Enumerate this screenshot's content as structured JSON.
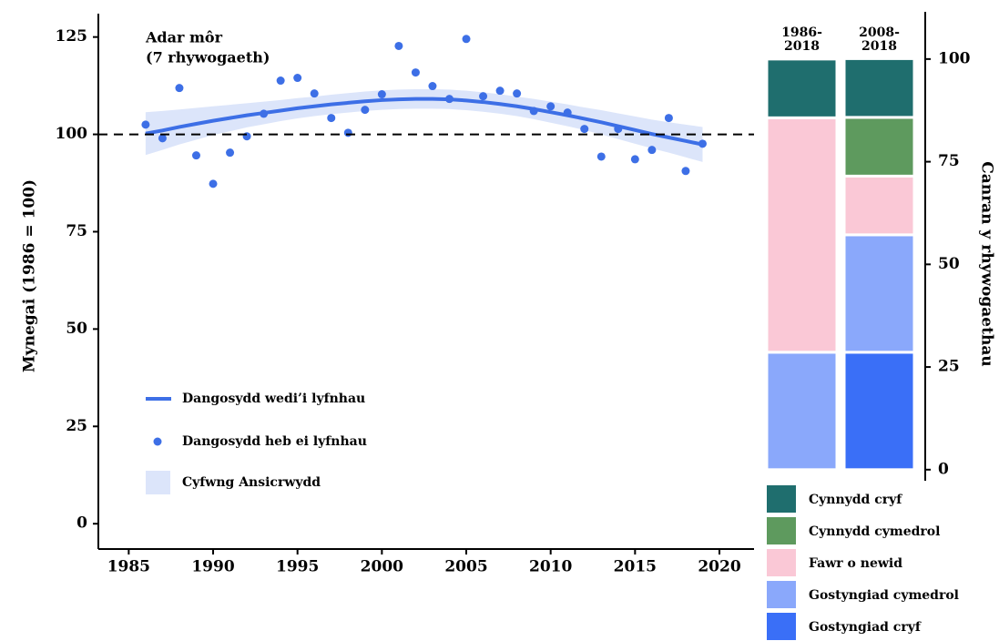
{
  "chart_data": [
    {
      "type": "line",
      "annotation": [
        "Adar môr",
        "(7 rhywogaeth)"
      ],
      "y_label": "Mynegai (1986 = 100)",
      "x": [
        1986,
        1987,
        1988,
        1989,
        1990,
        1991,
        1992,
        1993,
        1994,
        1995,
        1996,
        1997,
        1998,
        1999,
        2000,
        2001,
        2002,
        2003,
        2004,
        2005,
        2006,
        2007,
        2008,
        2009,
        2010,
        2011,
        2012,
        2013,
        2014,
        2015,
        2016,
        2017,
        2018,
        2019
      ],
      "series": [
        {
          "name": "Dangosydd wedi’i lyfnhau",
          "style": "line",
          "color": "#3d6fe6",
          "values": [
            100.2,
            101,
            101.9,
            102.7,
            103.5,
            104.2,
            104.9,
            105.5,
            106.1,
            106.7,
            107.2,
            107.7,
            108.1,
            108.5,
            108.8,
            109,
            109.1,
            109.1,
            109,
            108.7,
            108.3,
            107.8,
            107.2,
            106.5,
            105.7,
            104.9,
            104,
            103.1,
            102.1,
            101.1,
            100.1,
            99.2,
            98.3,
            97.4
          ]
        },
        {
          "name": "Dangosydd heb ei lyfnhau",
          "style": "points",
          "color": "#3d6fe6",
          "values": [
            102.5,
            99,
            111.9,
            94.6,
            87.3,
            95.3,
            99.5,
            105.3,
            113.8,
            114.5,
            110.5,
            104.2,
            100.4,
            106.3,
            110.3,
            122.7,
            115.9,
            112.4,
            109.1,
            124.5,
            109.8,
            111.2,
            110.5,
            106,
            107.2,
            105.6,
            101.4,
            94.3,
            101.4,
            93.6,
            96,
            104.2,
            90.6,
            97.6
          ]
        },
        {
          "name": "Cyfwng Ansicrwydd",
          "style": "band",
          "color": "#dce5fa",
          "lower": [
            94.7,
            96,
            97.4,
            98.6,
            99.8,
            100.8,
            101.8,
            102.6,
            103.4,
            104.1,
            104.7,
            105.2,
            105.6,
            106,
            106.3,
            106.5,
            106.6,
            106.6,
            106.5,
            106.2,
            105.8,
            105.3,
            104.7,
            103.9,
            103,
            102.1,
            101.1,
            100,
            98.8,
            97.6,
            96.4,
            95.3,
            94.1,
            92.9
          ],
          "upper": [
            105.7,
            106,
            106.4,
            106.8,
            107.2,
            107.6,
            108,
            108.4,
            108.8,
            109.3,
            109.7,
            110.2,
            110.6,
            111,
            111.3,
            111.5,
            111.6,
            111.6,
            111.5,
            111.2,
            110.8,
            110.3,
            109.7,
            109.1,
            108.4,
            107.7,
            106.9,
            106.2,
            105.4,
            104.6,
            103.8,
            103.1,
            102.5,
            101.9
          ]
        }
      ],
      "xlim": [
        1983.2,
        2022.05
      ],
      "ylim": [
        -6.5,
        131
      ],
      "xticks": [
        1985,
        1990,
        1995,
        2000,
        2005,
        2010,
        2015,
        2020
      ],
      "yticks": [
        0,
        25,
        50,
        75,
        100,
        125
      ],
      "hline": 100
    },
    {
      "type": "stacked_bar",
      "y_label": "Canran y rhywogaethau",
      "categories": [
        "1986-2018",
        "2008-2018"
      ],
      "series": [
        {
          "name": "Gostyngiad cryf",
          "color": "#3a6ff7",
          "values": [
            0,
            28.6
          ]
        },
        {
          "name": "Gostyngiad cymedrol",
          "color": "#8aa8fb",
          "values": [
            28.6,
            28.6
          ]
        },
        {
          "name": "Fawr o newid",
          "color": "#fac8d6",
          "values": [
            57.1,
            14.3
          ]
        },
        {
          "name": "Cynnydd cymedrol",
          "color": "#5e9a5e",
          "values": [
            0,
            14.3
          ]
        },
        {
          "name": "Cynnydd cryf",
          "color": "#1f6e6e",
          "values": [
            14.3,
            14.3
          ]
        }
      ],
      "ylim": [
        -2.7,
        111.5
      ],
      "yticks": [
        0,
        25,
        50,
        75,
        100
      ]
    }
  ]
}
